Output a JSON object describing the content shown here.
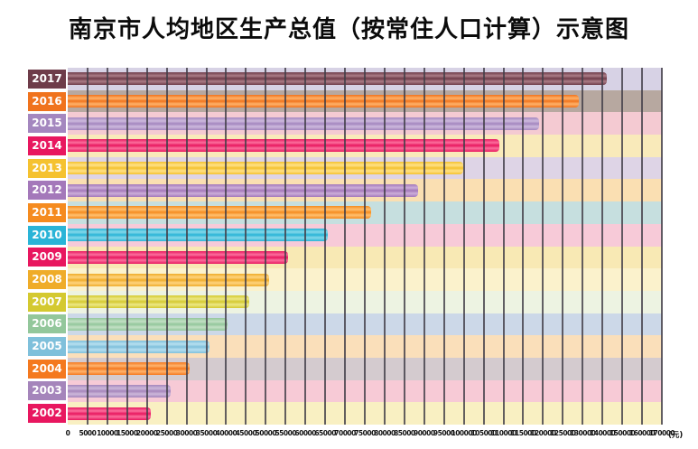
{
  "title": "南京市人均地区生产总值（按常住人口计算）示意图",
  "chart_data": {
    "type": "bar",
    "orientation": "horizontal",
    "title": "南京市人均地区生产总值（按常住人口计算）示意图",
    "unit": "(元)",
    "gridlines": true,
    "gridline_color": "#423e48",
    "value_axis": {
      "range": [
        0,
        170000
      ],
      "scale_note": "linear step 5000 up to 130000, then compressed step 10000 per gridline from 130000 to 170000",
      "tick_labels": [
        "0",
        "5000",
        "10000",
        "15000",
        "20000",
        "25000",
        "30000",
        "35000",
        "40000",
        "45000",
        "50000",
        "55000",
        "60000",
        "65000",
        "70000",
        "75000",
        "80000",
        "85000",
        "90000",
        "95000",
        "100000",
        "105000",
        "110000",
        "115000",
        "120000",
        "125000",
        "130000",
        "140000",
        "150000",
        "160000",
        "170000"
      ],
      "tick_values": [
        0,
        5000,
        10000,
        15000,
        20000,
        25000,
        30000,
        35000,
        40000,
        45000,
        50000,
        55000,
        60000,
        65000,
        70000,
        75000,
        80000,
        85000,
        90000,
        95000,
        100000,
        105000,
        110000,
        115000,
        120000,
        125000,
        130000,
        140000,
        150000,
        160000,
        170000
      ]
    },
    "rows": [
      {
        "year": "2017年",
        "value": 142000,
        "color": "#6e3c49",
        "light": "#ab7c87",
        "band": "#d7d2e5"
      },
      {
        "year": "2016年",
        "value": 129000,
        "color": "#f0731d",
        "light": "#ffb269",
        "band": "#b7a8a0"
      },
      {
        "year": "2015年",
        "value": 119000,
        "color": "#a487bf",
        "light": "#cdb9dd",
        "band": "#f4cad2"
      },
      {
        "year": "2014年",
        "value": 109000,
        "color": "#e8175f",
        "light": "#fb6f9d",
        "band": "#f9eaba"
      },
      {
        "year": "2013年",
        "value": 99900,
        "color": "#f5c230",
        "light": "#ffe187",
        "band": "#ded4e6"
      },
      {
        "year": "2012年",
        "value": 88500,
        "color": "#a478ba",
        "light": "#ccaed9",
        "band": "#fadfb2"
      },
      {
        "year": "2011年",
        "value": 76600,
        "color": "#f58b1f",
        "light": "#ffc06e",
        "band": "#c6dfdf"
      },
      {
        "year": "2010年",
        "value": 65700,
        "color": "#2ab4d7",
        "light": "#84d8ea",
        "band": "#f7cad8"
      },
      {
        "year": "2009年",
        "value": 55600,
        "color": "#e8175f",
        "light": "#fb6f9d",
        "band": "#f8e9b4"
      },
      {
        "year": "2008年",
        "value": 50900,
        "color": "#efac29",
        "light": "#ffd37e",
        "band": "#fbf2cc"
      },
      {
        "year": "2007年",
        "value": 45800,
        "color": "#d4c930",
        "light": "#ece885",
        "band": "#edf3e2"
      },
      {
        "year": "2006年",
        "value": 40400,
        "color": "#93c79b",
        "light": "#c2e0c4",
        "band": "#ccd8e8"
      },
      {
        "year": "2005年",
        "value": 35800,
        "color": "#7fc0db",
        "light": "#b7dff0",
        "band": "#fadfba"
      },
      {
        "year": "2004年",
        "value": 30800,
        "color": "#f4791f",
        "light": "#ffb36d",
        "band": "#d4cbcf"
      },
      {
        "year": "2003年",
        "value": 26000,
        "color": "#a585bb",
        "light": "#cdb8da",
        "band": "#f7cad6"
      },
      {
        "year": "2002年",
        "value": 21000,
        "color": "#e8175f",
        "light": "#fb6f9d",
        "band": "#f9f0c2"
      }
    ]
  }
}
